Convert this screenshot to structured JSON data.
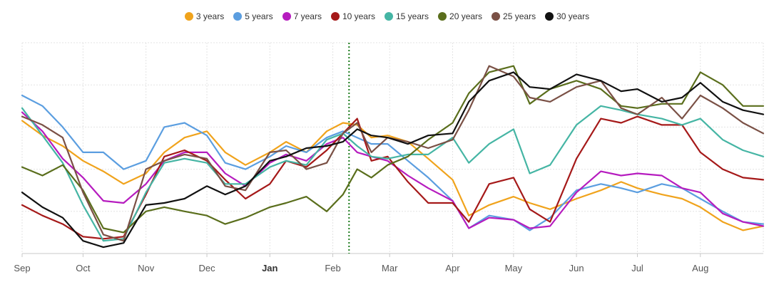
{
  "chart_data": {
    "type": "line",
    "x_ticks": [
      {
        "label": "Sep",
        "day": 0
      },
      {
        "label": "Oct",
        "day": 30
      },
      {
        "label": "Nov",
        "day": 61
      },
      {
        "label": "Dec",
        "day": 91
      },
      {
        "label": "Jan",
        "day": 122,
        "bold": true
      },
      {
        "label": "Feb",
        "day": 153
      },
      {
        "label": "Mar",
        "day": 181
      },
      {
        "label": "Apr",
        "day": 212
      },
      {
        "label": "May",
        "day": 242
      },
      {
        "label": "Jun",
        "day": 273
      },
      {
        "label": "Jul",
        "day": 303
      },
      {
        "label": "Aug",
        "day": 334
      }
    ],
    "xlim": [
      0,
      365
    ],
    "ylim": [
      0,
      100
    ],
    "grid": true,
    "legend_position": "top",
    "marker_line_day": 161,
    "series": [
      {
        "name": "3 years",
        "color": "#f0a31c",
        "x": [
          0,
          10,
          20,
          30,
          40,
          50,
          61,
          70,
          80,
          91,
          100,
          110,
          122,
          130,
          140,
          150,
          158,
          165,
          172,
          180,
          190,
          200,
          212,
          220,
          230,
          242,
          250,
          260,
          273,
          285,
          295,
          303,
          315,
          325,
          334,
          345,
          355,
          365
        ],
        "y": [
          63,
          56,
          51,
          44,
          39,
          33,
          38,
          48,
          55,
          58,
          48,
          42,
          48,
          53,
          48,
          58,
          62,
          61,
          55,
          56,
          53,
          45,
          35,
          18,
          23,
          27,
          24,
          21,
          26,
          30,
          34,
          31,
          28,
          26,
          22,
          15,
          11,
          13
        ]
      },
      {
        "name": "5 years",
        "color": "#5b9ee0",
        "x": [
          0,
          10,
          20,
          30,
          40,
          50,
          61,
          70,
          80,
          91,
          100,
          110,
          122,
          130,
          140,
          150,
          158,
          165,
          172,
          180,
          190,
          200,
          212,
          220,
          230,
          242,
          250,
          260,
          273,
          285,
          295,
          303,
          315,
          325,
          334,
          345,
          355,
          365
        ],
        "y": [
          75,
          70,
          60,
          48,
          48,
          40,
          44,
          60,
          62,
          56,
          43,
          40,
          46,
          51,
          48,
          55,
          58,
          55,
          52,
          52,
          44,
          36,
          25,
          12,
          18,
          16,
          11,
          17,
          30,
          33,
          31,
          29,
          33,
          31,
          26,
          20,
          15,
          14
        ]
      },
      {
        "name": "7 years",
        "color": "#b61cbf",
        "x": [
          0,
          10,
          20,
          30,
          40,
          50,
          61,
          70,
          80,
          91,
          100,
          110,
          122,
          130,
          140,
          150,
          158,
          165,
          172,
          180,
          190,
          200,
          212,
          220,
          230,
          242,
          250,
          260,
          273,
          285,
          295,
          303,
          315,
          325,
          334,
          345,
          355,
          365
        ],
        "y": [
          67,
          58,
          45,
          36,
          25,
          24,
          33,
          44,
          48,
          48,
          38,
          32,
          43,
          47,
          44,
          52,
          55,
          48,
          46,
          44,
          37,
          31,
          25,
          12,
          17,
          16,
          12,
          13,
          29,
          39,
          37,
          38,
          37,
          31,
          29,
          19,
          15,
          13
        ]
      },
      {
        "name": "10 years",
        "color": "#a51919",
        "x": [
          0,
          10,
          20,
          30,
          40,
          50,
          61,
          70,
          80,
          91,
          100,
          110,
          122,
          130,
          140,
          150,
          158,
          165,
          172,
          180,
          190,
          200,
          212,
          220,
          230,
          242,
          250,
          260,
          273,
          285,
          295,
          303,
          315,
          325,
          334,
          345,
          355,
          365
        ],
        "y": [
          23,
          18,
          14,
          8,
          7,
          8,
          28,
          46,
          49,
          44,
          35,
          26,
          33,
          44,
          41,
          49,
          57,
          64,
          44,
          46,
          34,
          24,
          24,
          15,
          33,
          36,
          21,
          15,
          45,
          64,
          62,
          65,
          61,
          61,
          48,
          40,
          36,
          35
        ]
      },
      {
        "name": "15 years",
        "color": "#45b5a4",
        "x": [
          0,
          10,
          20,
          30,
          40,
          50,
          61,
          70,
          80,
          91,
          100,
          110,
          122,
          130,
          140,
          150,
          158,
          165,
          172,
          180,
          190,
          200,
          212,
          220,
          230,
          242,
          250,
          260,
          273,
          285,
          295,
          303,
          315,
          325,
          334,
          345,
          355,
          365
        ],
        "y": [
          69,
          56,
          43,
          23,
          6,
          7,
          29,
          43,
          45,
          43,
          33,
          33,
          41,
          44,
          42,
          54,
          57,
          51,
          46,
          45,
          47,
          47,
          55,
          43,
          52,
          59,
          38,
          42,
          61,
          70,
          68,
          66,
          64,
          61,
          64,
          54,
          49,
          46
        ]
      },
      {
        "name": "20 years",
        "color": "#5a6e1c",
        "x": [
          0,
          10,
          20,
          30,
          40,
          50,
          61,
          70,
          80,
          91,
          100,
          110,
          122,
          130,
          140,
          150,
          158,
          165,
          172,
          180,
          190,
          200,
          212,
          220,
          230,
          242,
          250,
          260,
          273,
          285,
          295,
          303,
          315,
          325,
          334,
          345,
          355,
          365
        ],
        "y": [
          41,
          37,
          42,
          30,
          12,
          10,
          20,
          22,
          20,
          18,
          14,
          17,
          22,
          24,
          27,
          20,
          28,
          40,
          36,
          42,
          46,
          54,
          62,
          76,
          86,
          89,
          71,
          78,
          82,
          78,
          70,
          69,
          71,
          71,
          86,
          80,
          70,
          70
        ]
      },
      {
        "name": "25 years",
        "color": "#7a5045",
        "x": [
          0,
          10,
          20,
          30,
          40,
          50,
          61,
          70,
          80,
          91,
          100,
          110,
          122,
          130,
          140,
          150,
          158,
          165,
          172,
          180,
          190,
          200,
          212,
          220,
          230,
          242,
          250,
          260,
          273,
          285,
          295,
          303,
          315,
          325,
          334,
          345,
          355,
          365
        ],
        "y": [
          65,
          61,
          55,
          29,
          9,
          6,
          40,
          44,
          47,
          45,
          32,
          30,
          48,
          49,
          40,
          43,
          57,
          62,
          48,
          55,
          53,
          50,
          54,
          68,
          89,
          84,
          74,
          72,
          79,
          82,
          69,
          66,
          74,
          64,
          75,
          69,
          62,
          57
        ]
      },
      {
        "name": "30 years",
        "color": "#111111",
        "x": [
          0,
          10,
          20,
          30,
          40,
          50,
          61,
          70,
          80,
          91,
          100,
          110,
          122,
          130,
          140,
          150,
          158,
          165,
          172,
          180,
          190,
          200,
          212,
          220,
          230,
          242,
          250,
          260,
          273,
          285,
          295,
          303,
          315,
          325,
          334,
          345,
          355,
          365
        ],
        "y": [
          29,
          22,
          17,
          6,
          3,
          5,
          23,
          24,
          26,
          32,
          28,
          32,
          44,
          46,
          50,
          51,
          53,
          59,
          56,
          55,
          52,
          56,
          57,
          72,
          82,
          86,
          79,
          78,
          85,
          82,
          77,
          78,
          72,
          74,
          81,
          72,
          68,
          66
        ]
      }
    ]
  }
}
